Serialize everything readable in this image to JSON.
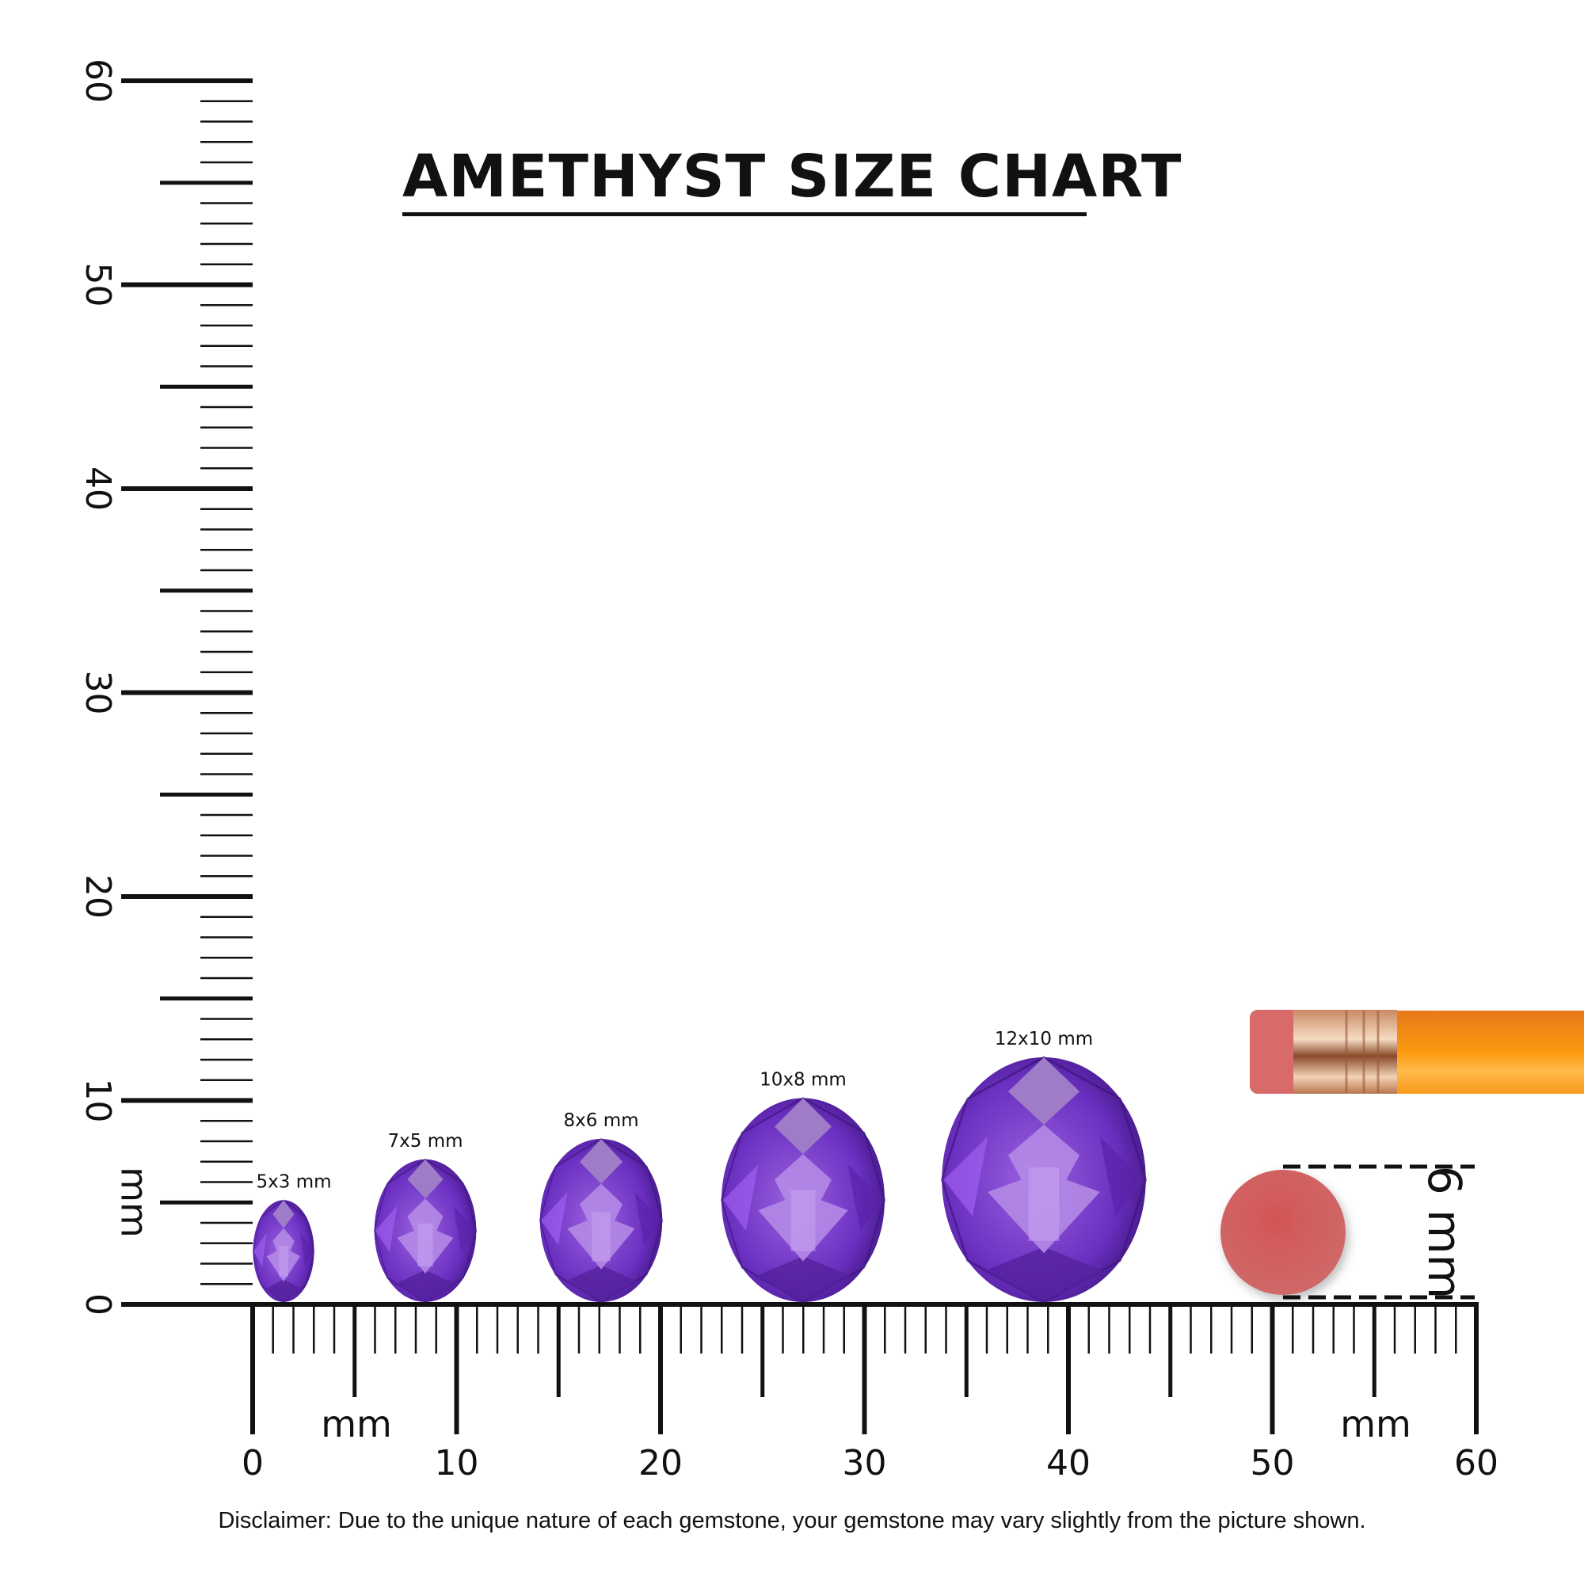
{
  "title": "AMETHYST SIZE CHART",
  "disclaimer": "Disclaimer: Due to the unique nature of each gemstone, your gemstone may vary slightly from the picture shown.",
  "vertical_ruler": {
    "unit": "mm",
    "min": 0,
    "max": 60,
    "labels": [
      "0",
      "10",
      "20",
      "30",
      "40",
      "50",
      "60"
    ]
  },
  "horizontal_ruler": {
    "unit": "mm",
    "unit_label_2": "mm",
    "min": 0,
    "max": 60,
    "labels": [
      "0",
      "10",
      "20",
      "30",
      "40",
      "50",
      "60"
    ]
  },
  "gems": [
    {
      "label": "5x3 mm",
      "height_mm": 5,
      "width_mm": 3
    },
    {
      "label": "7x5 mm",
      "height_mm": 7,
      "width_mm": 5
    },
    {
      "label": "8x6 mm",
      "height_mm": 8,
      "width_mm": 6
    },
    {
      "label": "10x8 mm",
      "height_mm": 10,
      "width_mm": 8
    },
    {
      "label": "12x10 mm",
      "height_mm": 12,
      "width_mm": 10
    }
  ],
  "eraser_reference": {
    "label": "6 mm",
    "size_mm": 6
  },
  "colors": {
    "gem_dark": "#4a1d8c",
    "gem_mid": "#7b3fd0",
    "gem_light": "#b48ae6",
    "eraser": "#d45a5a",
    "pencil": "#f7941d",
    "ferrule": "#d9a27a",
    "ink": "#111111"
  }
}
